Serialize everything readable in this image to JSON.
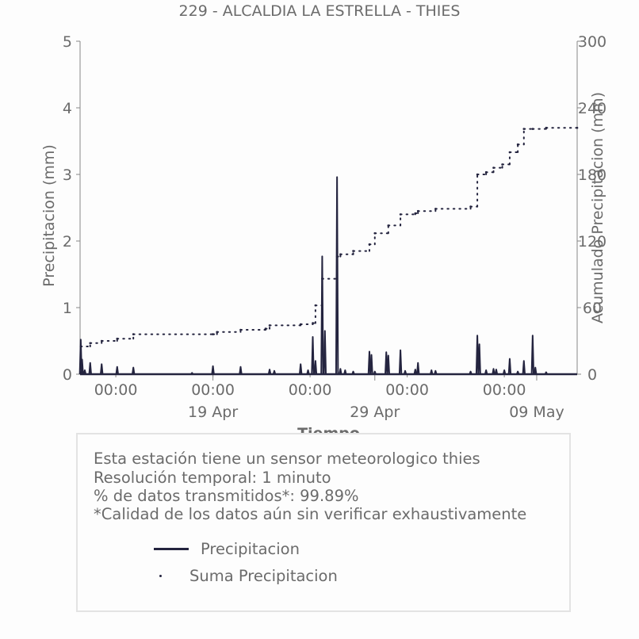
{
  "title": "229 - ALCALDIA LA ESTRELLA - THIES",
  "info": {
    "lines": [
      "Esta estación tiene un sensor meteorologico thies",
      "Resolución temporal: 1 minuto",
      "% de datos transmitidos*: 99.89%",
      "*Calidad de los datos aún sin verificar exhaustivamente"
    ]
  },
  "legend": {
    "precip_label": "Precipitacion",
    "sum_label": "Suma Precipitacion"
  },
  "colors": {
    "series": "#24243f",
    "text": "#6b6b6b",
    "axis": "#888888"
  },
  "chart_data": {
    "type": "line",
    "title": "229 - ALCALDIA LA ESTRELLA - THIES",
    "xlabel": "Tiempo",
    "ylabel": "Precipitacion (mm)",
    "y2label": "Acumulado Precipitacion (mm)",
    "xlim": [
      "2024-04-10T19:00",
      "2024-05-11T12:00"
    ],
    "ylim": [
      0,
      5
    ],
    "y2lim": [
      0,
      300
    ],
    "yticks": [
      "0",
      "1",
      "2",
      "3",
      "4",
      "5"
    ],
    "y2ticks": [
      "0",
      "60",
      "120",
      "180",
      "240",
      "300"
    ],
    "x_minor_ticks": [
      {
        "t": "2024-04-13T00:00",
        "label": "00:00"
      },
      {
        "t": "2024-04-19T00:00",
        "label": "00:00"
      },
      {
        "t": "2024-04-25T00:00",
        "label": "00:00"
      },
      {
        "t": "2024-05-01T00:00",
        "label": "00:00"
      },
      {
        "t": "2024-05-07T00:00",
        "label": "00:00"
      }
    ],
    "x_major_ticks": [
      {
        "t": "2024-04-19T00:00",
        "label": "19 Apr"
      },
      {
        "t": "2024-04-29T00:00",
        "label": "29 Apr"
      },
      {
        "t": "2024-05-09T00:00",
        "label": "09 May"
      }
    ],
    "grid": false,
    "legend_position": "bottom",
    "series": [
      {
        "name": "Precipitacion",
        "kind": "line",
        "points": [
          [
            "2024-04-10T20:00",
            0.52
          ],
          [
            "2024-04-10T22:00",
            0.22
          ],
          [
            "2024-04-11T02:00",
            0.06
          ],
          [
            "2024-04-11T10:00",
            0.17
          ],
          [
            "2024-04-12T03:00",
            0.15
          ],
          [
            "2024-04-13T02:00",
            0.11
          ],
          [
            "2024-04-14T02:00",
            0.1
          ],
          [
            "2024-04-17T17:00",
            0.02
          ],
          [
            "2024-04-19T00:00",
            0.12
          ],
          [
            "2024-04-20T17:00",
            0.11
          ],
          [
            "2024-04-22T12:00",
            0.07
          ],
          [
            "2024-04-22T19:00",
            0.05
          ],
          [
            "2024-04-24T10:00",
            0.15
          ],
          [
            "2024-04-24T21:00",
            0.06
          ],
          [
            "2024-04-25T04:00",
            0.56
          ],
          [
            "2024-04-25T08:00",
            0.2
          ],
          [
            "2024-04-25T18:00",
            1.77
          ],
          [
            "2024-04-25T22:00",
            0.65
          ],
          [
            "2024-04-26T16:00",
            2.96
          ],
          [
            "2024-04-26T21:00",
            0.08
          ],
          [
            "2024-04-27T04:00",
            0.06
          ],
          [
            "2024-04-27T16:00",
            0.04
          ],
          [
            "2024-04-28T16:00",
            0.34
          ],
          [
            "2024-04-28T19:00",
            0.29
          ],
          [
            "2024-04-29T00:00",
            0.04
          ],
          [
            "2024-04-29T17:00",
            0.33
          ],
          [
            "2024-04-29T20:00",
            0.28
          ],
          [
            "2024-04-30T14:00",
            0.36
          ],
          [
            "2024-04-30T21:00",
            0.05
          ],
          [
            "2024-05-01T12:00",
            0.07
          ],
          [
            "2024-05-01T16:00",
            0.17
          ],
          [
            "2024-05-02T12:00",
            0.06
          ],
          [
            "2024-05-02T18:00",
            0.05
          ],
          [
            "2024-05-04T22:00",
            0.04
          ],
          [
            "2024-05-05T08:00",
            0.58
          ],
          [
            "2024-05-05T11:00",
            0.45
          ],
          [
            "2024-05-05T21:00",
            0.06
          ],
          [
            "2024-05-06T08:00",
            0.08
          ],
          [
            "2024-05-06T12:00",
            0.07
          ],
          [
            "2024-05-07T00:00",
            0.06
          ],
          [
            "2024-05-07T08:00",
            0.23
          ],
          [
            "2024-05-07T20:00",
            0.04
          ],
          [
            "2024-05-08T05:00",
            0.2
          ],
          [
            "2024-05-08T18:00",
            0.58
          ],
          [
            "2024-05-08T22:00",
            0.1
          ],
          [
            "2024-05-09T14:00",
            0.03
          ]
        ]
      },
      {
        "name": "Suma Precipitacion",
        "kind": "dotted",
        "points": [
          [
            "2024-04-10T20:00",
            25
          ],
          [
            "2024-04-11T10:00",
            28
          ],
          [
            "2024-04-12T03:00",
            30
          ],
          [
            "2024-04-13T02:00",
            32
          ],
          [
            "2024-04-14T02:00",
            36
          ],
          [
            "2024-04-19T00:00",
            36
          ],
          [
            "2024-04-19T06:00",
            38
          ],
          [
            "2024-04-20T17:00",
            40
          ],
          [
            "2024-04-22T06:00",
            41
          ],
          [
            "2024-04-22T12:00",
            44
          ],
          [
            "2024-04-24T10:00",
            45
          ],
          [
            "2024-04-25T04:00",
            46
          ],
          [
            "2024-04-25T08:00",
            62
          ],
          [
            "2024-04-25T18:00",
            86
          ],
          [
            "2024-04-26T16:00",
            106
          ],
          [
            "2024-04-26T21:00",
            108
          ],
          [
            "2024-04-27T16:00",
            111
          ],
          [
            "2024-04-28T16:00",
            117
          ],
          [
            "2024-04-29T00:00",
            127
          ],
          [
            "2024-04-29T20:00",
            134
          ],
          [
            "2024-04-30T14:00",
            144
          ],
          [
            "2024-05-01T12:00",
            145
          ],
          [
            "2024-05-01T16:00",
            147
          ],
          [
            "2024-05-02T18:00",
            149
          ],
          [
            "2024-05-04T22:00",
            151
          ],
          [
            "2024-05-05T08:00",
            180
          ],
          [
            "2024-05-05T21:00",
            182
          ],
          [
            "2024-05-06T08:00",
            186
          ],
          [
            "2024-05-06T21:00",
            189
          ],
          [
            "2024-05-07T08:00",
            200
          ],
          [
            "2024-05-07T20:00",
            207
          ],
          [
            "2024-05-08T05:00",
            221
          ],
          [
            "2024-05-08T18:00",
            221
          ],
          [
            "2024-05-09T14:00",
            222
          ],
          [
            "2024-05-11T12:00",
            222
          ]
        ]
      }
    ]
  }
}
